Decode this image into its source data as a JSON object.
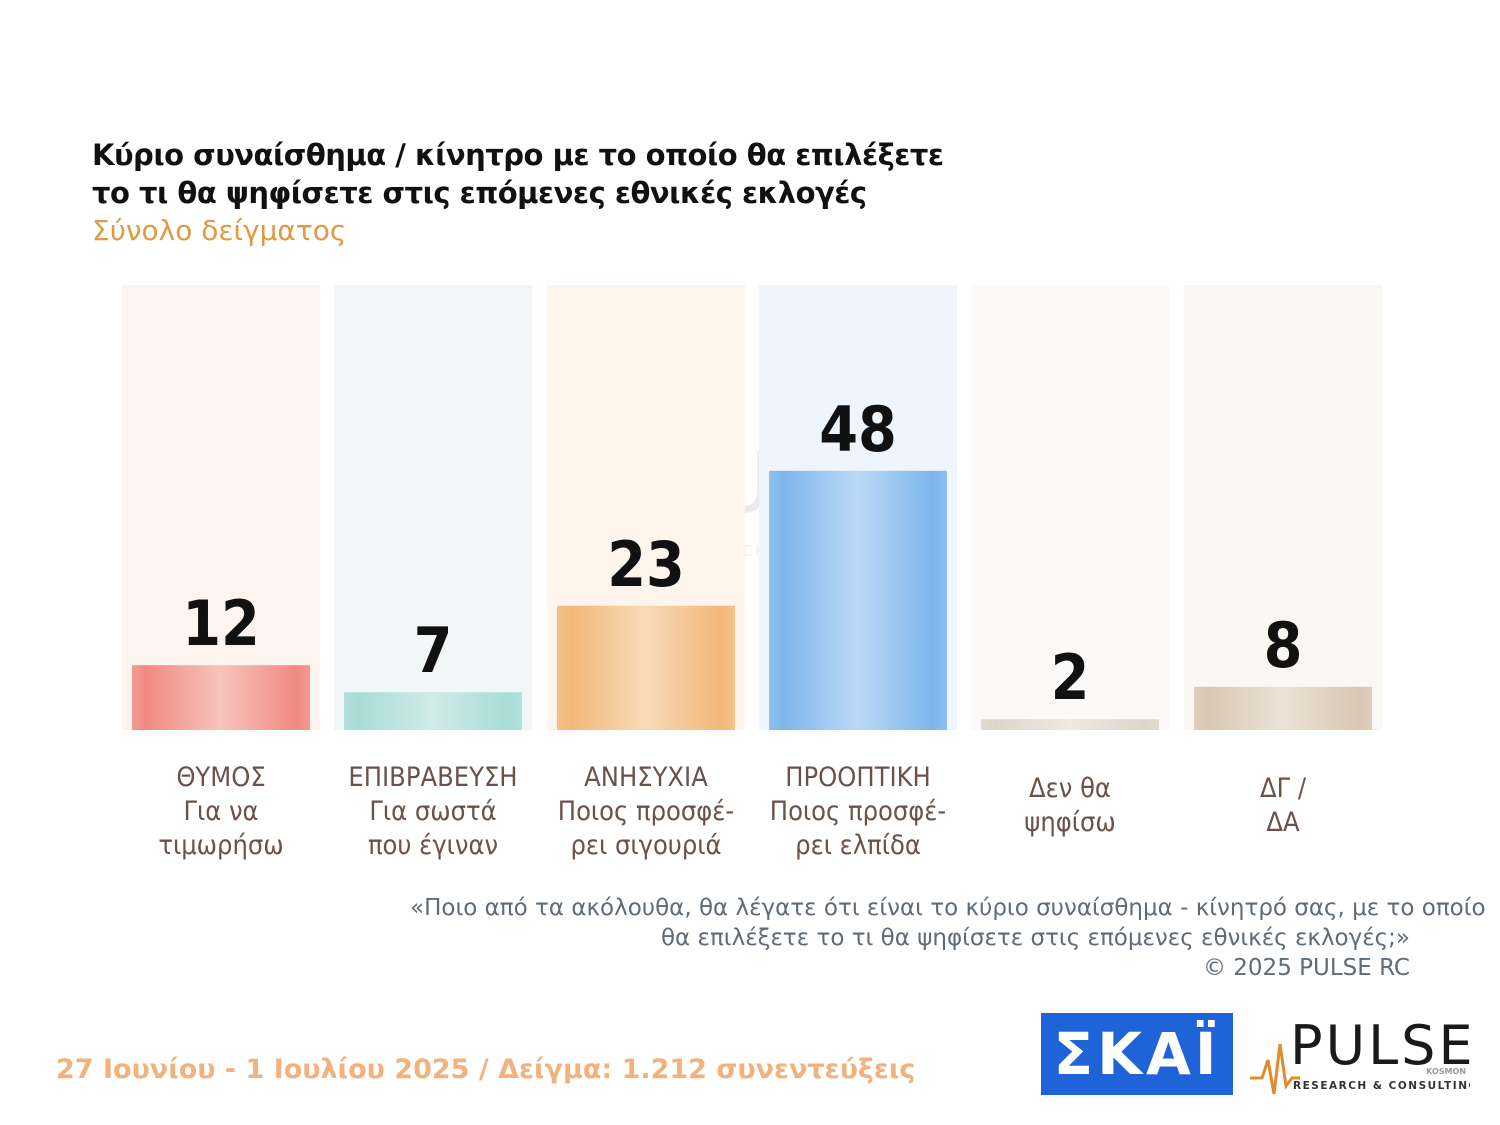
{
  "header": {
    "title_line1": "Κύριο συναίσθημα / κίνητρο με το οποίο θα επιλέξετε",
    "title_line2": "το τι θα ψηφίσετε στις επόμενες εθνικές εκλογές",
    "subtitle": "Σύνολο δείγματος"
  },
  "chart_data": {
    "type": "bar",
    "categories": [
      [
        "ΘΥΜΟΣ",
        "Για να",
        "τιμωρήσω"
      ],
      [
        "ΕΠΙΒΡΑΒΕΥΣΗ",
        "Για σωστά",
        "που έγιναν"
      ],
      [
        "ΑΝΗΣΥΧΙΑ",
        "Ποιος προσφέ-",
        "ρει σιγουριά"
      ],
      [
        "ΠΡΟΟΠΤΙΚΗ",
        "Ποιος προσφέ-",
        "ρει ελπίδα"
      ],
      [
        "Δεν θα",
        "ψηφίσω"
      ],
      [
        "ΔΓ /",
        "ΔΑ"
      ]
    ],
    "values": [
      12,
      7,
      23,
      48,
      2,
      8
    ],
    "value_labels": [
      "12",
      "7",
      "23",
      "48",
      "2",
      "8"
    ],
    "colors": [
      "#f08a80",
      "#a8dcd6",
      "#f2b878",
      "#7db6ec",
      "#ddd6c8",
      "#d8c8b2"
    ],
    "column_bg_colors": [
      "#fdf3ef",
      "#f1f7f6",
      "#fdf5ec",
      "#eef5fd",
      "#fbfaf8",
      "#fbf8f4"
    ],
    "ylim": [
      0,
      60
    ]
  },
  "watermark": {
    "main": "PULSE",
    "sub": "RESEARCH & CONSULTING"
  },
  "question": {
    "line1": "«Ποιο από τα ακόλουθα, θα λέγατε ότι είναι το κύριο συναίσθημα - κίνητρό σας, με το οποίο",
    "line2": "θα επιλέξετε το τι θα ψηφίσετε στις επόμενες εθνικές εκλογές;»",
    "copyright": "©  2025  PULSE RC"
  },
  "footer": {
    "text": "27 Ιουνίου - 1 Ιουλίου 2025  /  Δείγμα:  1.212 συνεντεύξεις"
  },
  "logos": {
    "skai": "ΣΚΑΪ",
    "pulse": "PULSE",
    "pulse_sub": "RESEARCH & CONSULTING",
    "pulse_tag": "KOSMON"
  }
}
